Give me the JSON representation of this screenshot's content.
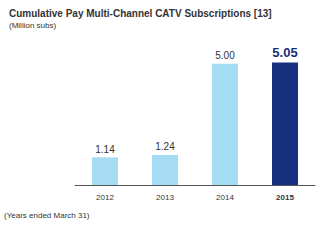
{
  "chart_data": {
    "type": "bar",
    "title": "Cumulative Pay Multi-Channel CATV Subscriptions [13]",
    "subtitle": "(Million subs)",
    "annotations": [
      "(Years ended March 31)"
    ],
    "categories": [
      "2012",
      "2013",
      "2014",
      "2015"
    ],
    "values": [
      1.14,
      1.24,
      5.0,
      5.05
    ],
    "value_labels": [
      "1.14",
      "1.24",
      "5.00",
      "5.05"
    ],
    "colors": [
      "#a6dcf3",
      "#a6dcf3",
      "#a6dcf3",
      "#172f7e"
    ],
    "ylim": [
      0,
      5.4
    ],
    "data_labels": true,
    "tick_labels": "x",
    "grid": false
  }
}
